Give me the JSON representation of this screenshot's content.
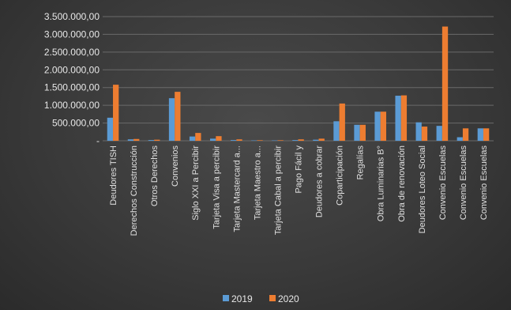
{
  "chart_data": {
    "type": "bar",
    "categories": [
      "Deudores TISH",
      "Derechos Construcción",
      "Otros Derechos",
      "Convenios",
      "Siglo XXI a Percibir",
      "Tarjeta Visa a percibir",
      "Tarjeta Mastercard a...",
      "Tarjeta Maestro a...",
      "Tarjeta Cabal a percibir",
      "Pago Fácil y",
      "Deudores a cobrar",
      "Coparticipación",
      "Regalías",
      "Obra Luminarias B°",
      "Obra de renovación",
      "Deudores Loteo Social",
      "Convenio Escuelas",
      "Convenio Escuelas",
      "Convenio Escuelas"
    ],
    "series": [
      {
        "name": "2019",
        "color": "#5b9bd5",
        "values": [
          650000,
          40000,
          20000,
          1200000,
          120000,
          60000,
          20000,
          10000,
          10000,
          20000,
          30000,
          550000,
          450000,
          820000,
          1270000,
          520000,
          420000,
          100000,
          350000
        ]
      },
      {
        "name": "2020",
        "color": "#ed7d31",
        "values": [
          1580000,
          50000,
          30000,
          1380000,
          220000,
          130000,
          40000,
          15000,
          15000,
          40000,
          60000,
          1050000,
          450000,
          820000,
          1280000,
          400000,
          3220000,
          350000,
          350000
        ]
      }
    ],
    "yticks": [
      "3.500.000,00",
      "3.000.000,00",
      "2.500.000,00",
      "2.000.000,00",
      "1.500.000,00",
      "1.000.000,00",
      "500.000,00",
      "-"
    ],
    "ylim": [
      0,
      3500000
    ],
    "grid": true,
    "legend": "bottom",
    "title": "",
    "xlabel": "",
    "ylabel": ""
  }
}
